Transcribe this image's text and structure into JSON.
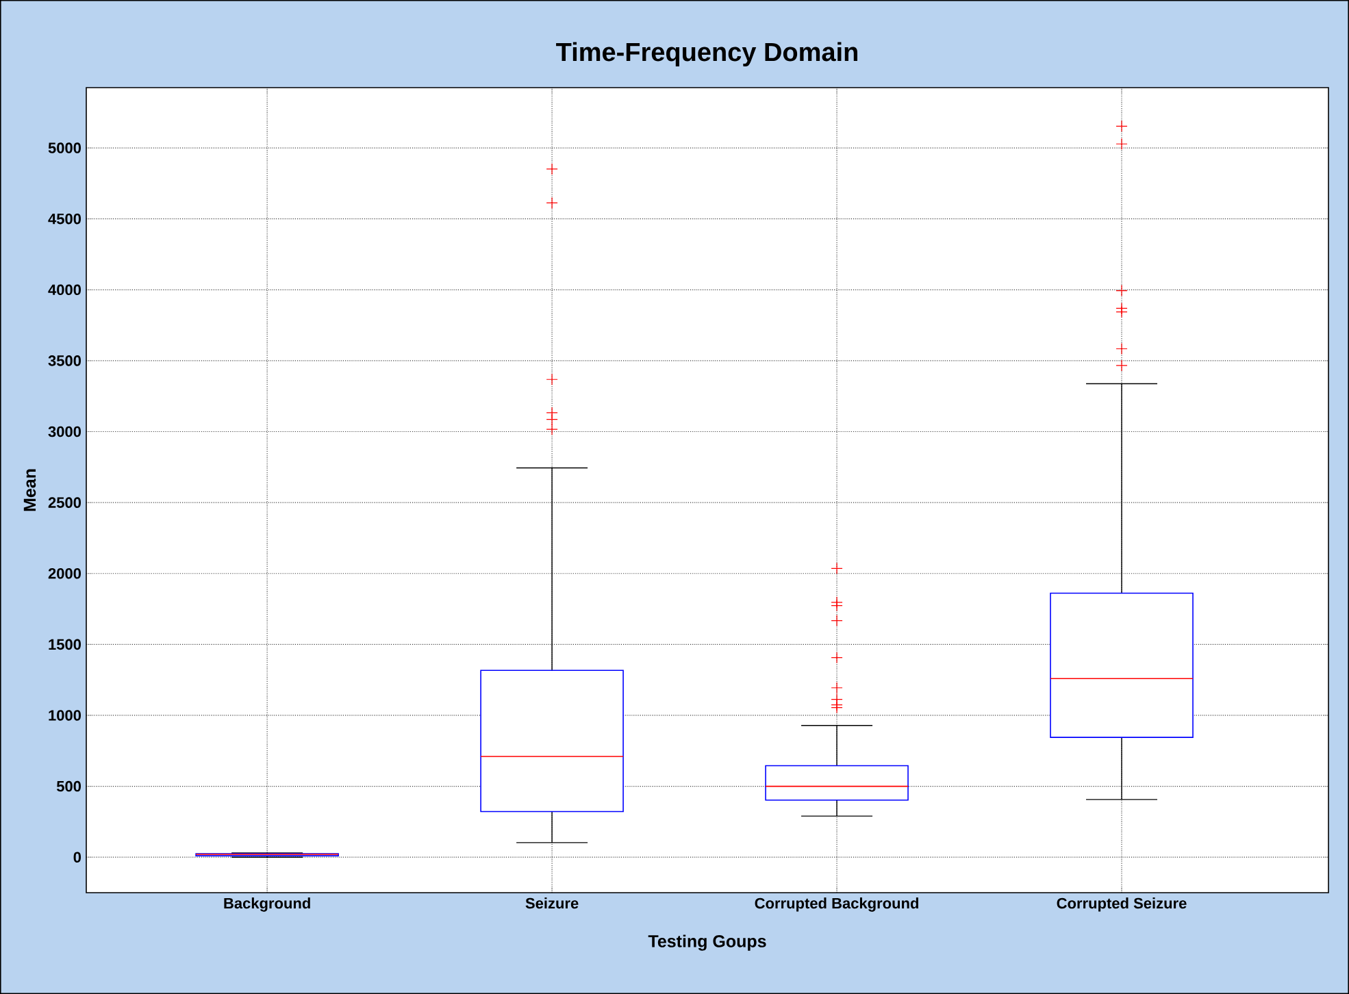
{
  "chart_data": {
    "type": "box",
    "title": "Time-Frequency Domain",
    "xlabel": "Testing Goups",
    "ylabel": "Mean",
    "categories": [
      "Background",
      "Seizure",
      "Corrupted Background",
      "Corrupted Seizure"
    ],
    "color": "#0000ff",
    "marker": "cross",
    "grid": true,
    "ylim": [
      -250,
      5425
    ],
    "yticks": [
      0,
      500,
      1000,
      1500,
      2000,
      2500,
      3000,
      3500,
      4000,
      4500,
      5000
    ],
    "boxes": [
      {
        "low": 0,
        "q1": 10,
        "median": 20,
        "q3": 25,
        "high": 30
      },
      {
        "low": 103,
        "q1": 322,
        "median": 710,
        "q3": 1317,
        "high": 2744,
        "outliers": [
          4851,
          4612,
          3368,
          3133,
          3086,
          3016
        ]
      },
      {
        "low": 290,
        "q1": 403,
        "median": 500,
        "q3": 645,
        "high": 929,
        "outliers": [
          2036,
          1797,
          1774,
          1668,
          1407,
          1194,
          1113,
          1074,
          1055
        ]
      },
      {
        "low": 407,
        "q1": 845,
        "median": 1259,
        "q3": 1861,
        "high": 3338,
        "outliers": [
          5153,
          5028,
          3994,
          3869,
          3844,
          3584,
          3466
        ]
      }
    ]
  }
}
